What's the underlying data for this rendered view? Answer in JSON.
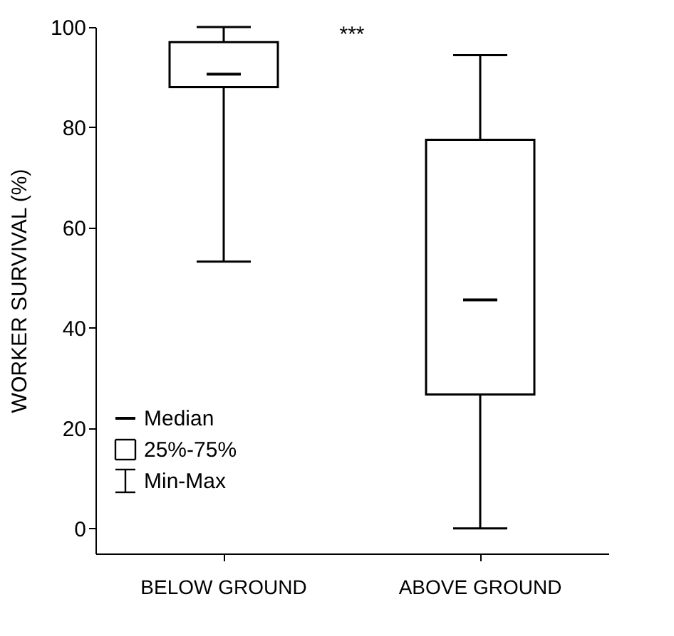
{
  "chart_data": {
    "type": "box",
    "ylabel": "WORKER SURVIVAL (%)",
    "categories": [
      "BELOW GROUND",
      "ABOVE GROUND"
    ],
    "boxes": [
      {
        "low": 53.2,
        "q1": 88.0,
        "median": 90.6,
        "q3": 97.0,
        "high": 100
      },
      {
        "low": 0,
        "q1": 26.7,
        "median": 45.6,
        "q3": 77.5,
        "high": 94.4
      }
    ],
    "ylim": [
      -5,
      100
    ],
    "yticks": [
      0,
      20,
      40,
      60,
      80,
      100
    ],
    "grid": false,
    "annotations": [
      "***",
      "Median",
      "25%-75%",
      "Min-Max"
    ]
  }
}
